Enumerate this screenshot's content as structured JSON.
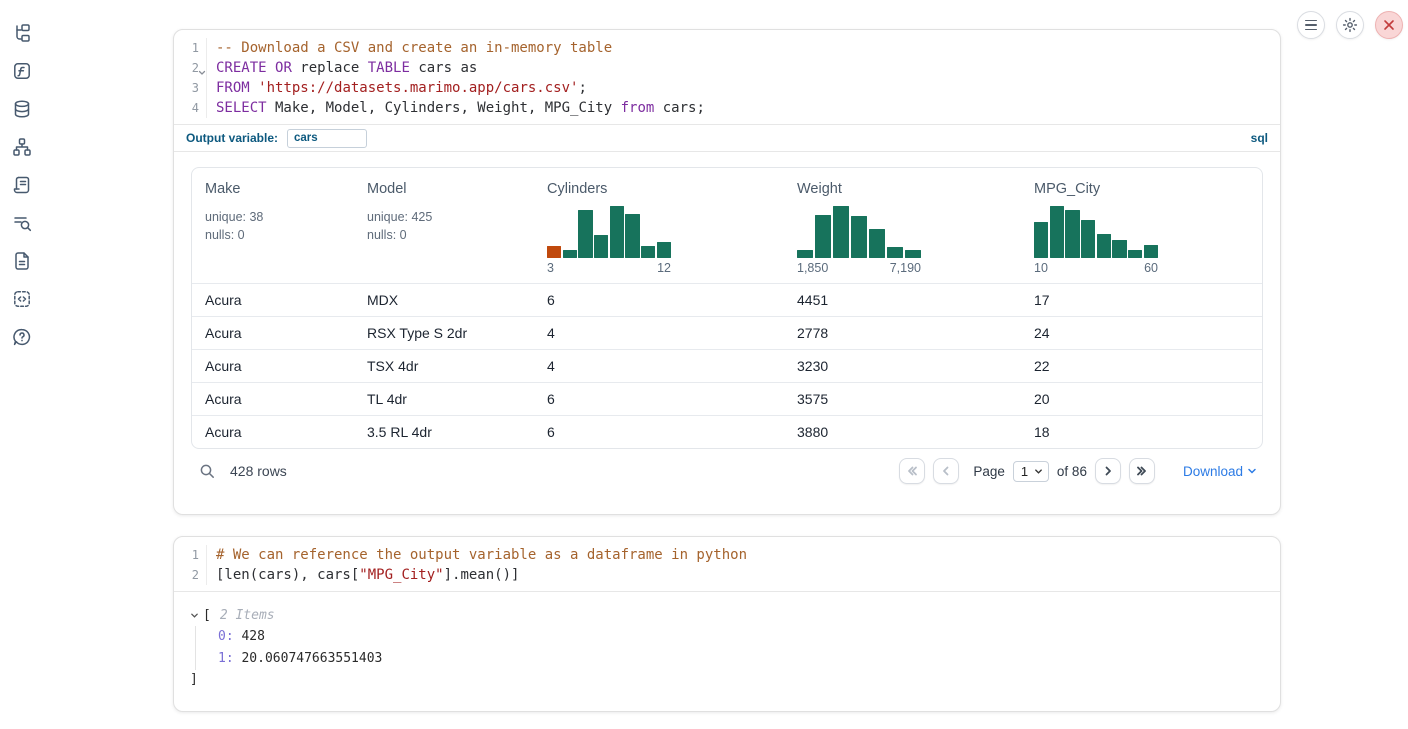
{
  "colors": {
    "accent_blue": "#0d597f",
    "download_blue": "#2c7be5",
    "hist_green": "#17735c",
    "hist_orange": "#c0490d",
    "code_keyword": "#7d2da0",
    "code_comment": "#a5632d",
    "code_string": "#a32020",
    "close_button_bg": "#f9d6d6"
  },
  "sidebar": {
    "icons": [
      "file-tree",
      "variables",
      "datasources",
      "dependencies",
      "logs",
      "search-logs",
      "documentation",
      "snippets",
      "help"
    ]
  },
  "topbar": {
    "icons": [
      "menu",
      "settings",
      "shutdown"
    ]
  },
  "sql_cell": {
    "gutter": [
      {
        "n": "1"
      },
      {
        "n": "2",
        "fold": true
      },
      {
        "n": "3"
      },
      {
        "n": "4"
      }
    ],
    "code": [
      [
        [
          "com",
          "-- Download a CSV and create an in-memory table"
        ]
      ],
      [
        [
          "kw",
          "CREATE"
        ],
        [
          "pl",
          " "
        ],
        [
          "kw",
          "OR"
        ],
        [
          "pl",
          " replace "
        ],
        [
          "kw",
          "TABLE"
        ],
        [
          "pl",
          " cars as"
        ]
      ],
      [
        [
          "kw",
          "FROM"
        ],
        [
          "pl",
          " "
        ],
        [
          "str",
          "'https://datasets.marimo.app/cars.csv'"
        ],
        [
          "pl",
          ";"
        ]
      ],
      [
        [
          "kw",
          "SELECT"
        ],
        [
          "pl",
          " Make, Model, Cylinders, Weight, MPG_City "
        ],
        [
          "kw",
          "from"
        ],
        [
          "pl",
          " cars;"
        ]
      ]
    ],
    "output_variable_label": "Output variable:",
    "output_variable_value": "cars",
    "language_badge": "sql",
    "table": {
      "columns": [
        {
          "label": "Make",
          "unique": "unique: 38",
          "nulls": "nulls: 0"
        },
        {
          "label": "Model",
          "unique": "unique: 425",
          "nulls": "nulls: 0"
        },
        {
          "label": "Cylinders"
        },
        {
          "label": "Weight"
        },
        {
          "label": "MPG_City"
        }
      ],
      "rows": [
        [
          "Acura",
          "MDX",
          "6",
          "4451",
          "17"
        ],
        [
          "Acura",
          "RSX Type S 2dr",
          "4",
          "2778",
          "24"
        ],
        [
          "Acura",
          "TSX 4dr",
          "4",
          "3230",
          "22"
        ],
        [
          "Acura",
          "TL 4dr",
          "6",
          "3575",
          "20"
        ],
        [
          "Acura",
          "3.5 RL 4dr",
          "6",
          "3880",
          "18"
        ]
      ],
      "row_count": "428 rows",
      "pagination": {
        "page_label": "Page",
        "page_value": "1",
        "of_label": "of 86",
        "download_label": "Download"
      }
    }
  },
  "chart_data": [
    {
      "type": "bar",
      "column": "Cylinders",
      "title": "Cylinders histogram",
      "x_range": [
        3,
        12
      ],
      "x_min_label": "3",
      "x_max_label": "12",
      "bar_heights": [
        0.24,
        0.15,
        0.93,
        0.45,
        1.0,
        0.85,
        0.24,
        0.31
      ],
      "highlight_first_bar": true
    },
    {
      "type": "bar",
      "column": "Weight",
      "title": "Weight histogram",
      "x_range": [
        1850,
        7190
      ],
      "x_min_label": "1,850",
      "x_max_label": "7,190",
      "bar_heights": [
        0.15,
        0.82,
        1.0,
        0.8,
        0.55,
        0.22,
        0.15
      ],
      "highlight_first_bar": false
    },
    {
      "type": "bar",
      "column": "MPG_City",
      "title": "MPG_City histogram",
      "x_range": [
        10,
        60
      ],
      "x_min_label": "10",
      "x_max_label": "60",
      "bar_heights": [
        0.7,
        1.0,
        0.93,
        0.73,
        0.47,
        0.35,
        0.15,
        0.25
      ],
      "highlight_first_bar": false
    }
  ],
  "python_cell": {
    "gutter": [
      {
        "n": "1"
      },
      {
        "n": "2"
      }
    ],
    "code": [
      [
        [
          "com",
          "# We can reference the output variable as a dataframe in python"
        ]
      ],
      [
        [
          "pl",
          "[len(cars), cars["
        ],
        [
          "str",
          "\"MPG_City\""
        ],
        [
          "pl",
          "].mean()]"
        ]
      ]
    ],
    "output": {
      "open_bracket": "[",
      "items_label": "2 Items",
      "items": [
        {
          "key": "0:",
          "value": "428"
        },
        {
          "key": "1:",
          "value": "20.060747663551403"
        }
      ],
      "close_bracket": "]"
    }
  }
}
